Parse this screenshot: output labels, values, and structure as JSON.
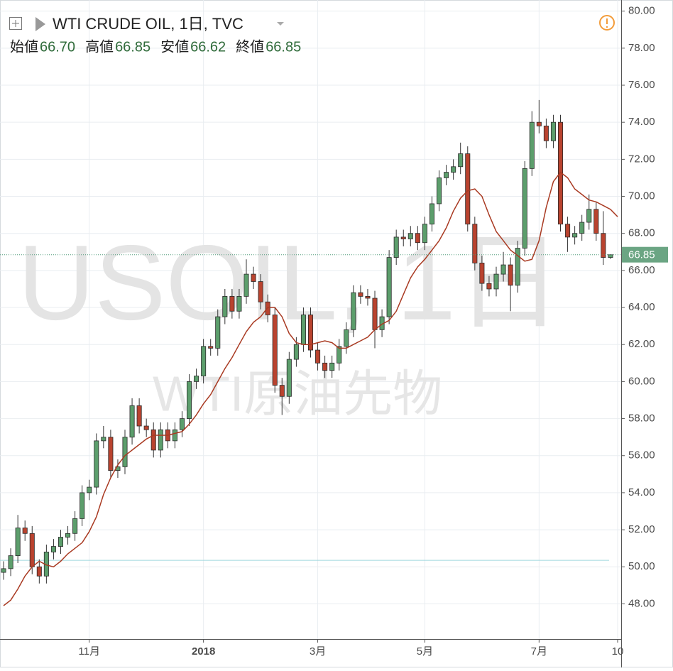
{
  "chart_data": {
    "type": "candlestick",
    "title": "WTI CRUDE OIL, 1日, TVC",
    "ohlc_legend": [
      {
        "label": "始値",
        "value": "66.70"
      },
      {
        "label": "高値",
        "value": "66.85"
      },
      {
        "label": "安値",
        "value": "66.62"
      },
      {
        "label": "終値",
        "value": "66.85"
      }
    ],
    "watermark": "USOIL, 1日",
    "watermark_sub": "WTI原油先物",
    "categories": [
      null,
      null,
      null,
      null,
      null,
      null,
      null,
      null,
      null,
      null,
      null,
      null,
      "11月",
      null,
      null,
      null,
      null,
      null,
      null,
      null,
      null,
      null,
      null,
      null,
      null,
      null,
      null,
      null,
      "2018",
      null,
      null,
      null,
      null,
      null,
      null,
      null,
      null,
      null,
      null,
      null,
      null,
      null,
      null,
      null,
      "3月",
      null,
      null,
      null,
      null,
      null,
      null,
      null,
      null,
      null,
      null,
      null,
      null,
      null,
      null,
      "5月",
      null,
      null,
      null,
      null,
      null,
      null,
      null,
      null,
      null,
      null,
      null,
      null,
      null,
      null,
      null,
      "7月",
      null,
      null,
      null,
      null,
      null,
      null,
      null,
      null,
      null,
      null,
      "10"
    ],
    "open": [
      49.7,
      49.9,
      50.6,
      52.1,
      51.8,
      50.0,
      49.5,
      50.8,
      51.1,
      51.6,
      51.8,
      52.6,
      54.0,
      54.3,
      56.8,
      57.0,
      55.2,
      55.4,
      57.0,
      58.7,
      57.6,
      57.4,
      56.3,
      57.4,
      56.8,
      57.4,
      58.0,
      60.0,
      60.3,
      61.9,
      61.8,
      63.5,
      64.6,
      63.8,
      64.6,
      65.8,
      65.4,
      64.3,
      63.6,
      59.8,
      59.2,
      61.2,
      62.0,
      63.6,
      61.7,
      61.0,
      60.6,
      61.0,
      61.9,
      62.8,
      64.8,
      64.6,
      64.5,
      62.8,
      63.5,
      66.7,
      67.8,
      67.7,
      68.0,
      67.5,
      68.5,
      69.6,
      71.0,
      71.3,
      71.6,
      72.3,
      68.5,
      66.4,
      65.3,
      65.0,
      65.8,
      66.3,
      65.2,
      67.2,
      71.5,
      74.0,
      73.8,
      73.0,
      74.0,
      68.5,
      67.8,
      68.0,
      68.6,
      69.3,
      68.0,
      66.7,
      null
    ],
    "high": [
      50.3,
      51.0,
      52.8,
      52.5,
      52.2,
      50.4,
      51.2,
      51.5,
      52.0,
      52.2,
      53.0,
      54.4,
      54.7,
      57.2,
      57.6,
      57.4,
      55.8,
      57.4,
      59.1,
      59.1,
      58.0,
      57.8,
      57.8,
      57.8,
      57.8,
      58.4,
      60.4,
      60.7,
      62.3,
      62.3,
      63.9,
      65.0,
      65.0,
      65.0,
      66.6,
      66.2,
      65.8,
      64.7,
      64.0,
      60.2,
      61.6,
      62.4,
      64.0,
      64.0,
      62.1,
      61.4,
      61.4,
      62.3,
      63.2,
      65.2,
      65.2,
      65.0,
      64.9,
      63.9,
      67.1,
      68.2,
      68.2,
      68.4,
      68.4,
      68.9,
      70.0,
      71.4,
      71.7,
      72.0,
      72.9,
      72.7,
      68.9,
      66.8,
      65.7,
      66.2,
      67.0,
      66.7,
      67.6,
      71.9,
      74.6,
      75.2,
      74.2,
      74.4,
      74.4,
      68.9,
      68.4,
      69.0,
      70.1,
      69.7,
      69.2,
      66.85,
      null
    ],
    "low": [
      49.3,
      49.5,
      50.2,
      51.4,
      49.6,
      49.1,
      49.1,
      50.4,
      50.7,
      51.2,
      51.4,
      52.2,
      53.6,
      53.9,
      56.4,
      54.8,
      54.8,
      55.0,
      56.6,
      57.2,
      57.0,
      55.9,
      55.9,
      56.4,
      56.4,
      57.0,
      57.6,
      59.6,
      59.9,
      61.4,
      61.4,
      63.1,
      63.4,
      63.4,
      64.2,
      65.0,
      63.9,
      63.2,
      59.4,
      58.2,
      58.8,
      60.8,
      61.6,
      61.3,
      60.6,
      60.2,
      60.2,
      60.6,
      61.5,
      62.4,
      64.2,
      64.1,
      61.8,
      62.4,
      63.1,
      66.3,
      67.3,
      67.3,
      67.1,
      67.1,
      68.1,
      69.2,
      70.6,
      70.9,
      71.2,
      68.1,
      66.0,
      64.9,
      64.6,
      64.6,
      65.4,
      63.8,
      64.8,
      66.8,
      71.1,
      73.4,
      72.6,
      72.6,
      68.1,
      67.0,
      67.4,
      67.6,
      68.2,
      67.6,
      66.3,
      66.62,
      null
    ],
    "close": [
      49.9,
      50.6,
      52.1,
      51.8,
      50.0,
      49.5,
      50.8,
      51.1,
      51.6,
      51.8,
      52.6,
      54.0,
      54.3,
      56.8,
      57.0,
      55.2,
      55.4,
      57.0,
      58.7,
      57.6,
      57.4,
      56.3,
      57.4,
      56.8,
      57.4,
      58.0,
      60.0,
      60.3,
      61.9,
      61.8,
      63.5,
      64.6,
      63.8,
      64.6,
      65.8,
      65.4,
      64.3,
      63.6,
      59.8,
      59.2,
      61.2,
      62.0,
      63.6,
      61.7,
      61.0,
      60.6,
      61.0,
      61.9,
      62.8,
      64.8,
      64.6,
      64.5,
      62.8,
      63.5,
      66.7,
      67.8,
      67.7,
      68.0,
      67.5,
      68.5,
      69.6,
      71.0,
      71.3,
      71.6,
      72.3,
      68.5,
      66.4,
      65.3,
      65.0,
      65.8,
      66.3,
      65.2,
      67.2,
      71.5,
      74.0,
      73.8,
      73.0,
      74.0,
      68.5,
      67.8,
      68.0,
      68.6,
      69.3,
      68.0,
      66.7,
      66.85,
      null
    ],
    "up_color": "#5c9e6c",
    "down_color": "#b9432f",
    "moving_average": {
      "color": "#a93a22",
      "values": [
        47.9,
        48.2,
        48.8,
        49.5,
        50.0,
        50.3,
        50.1,
        50.0,
        50.3,
        50.7,
        51.0,
        51.3,
        51.9,
        52.7,
        53.9,
        54.8,
        55.5,
        56.0,
        56.3,
        56.6,
        56.9,
        57.1,
        57.1,
        57.1,
        57.2,
        57.3,
        57.7,
        58.2,
        58.8,
        59.3,
        60.0,
        60.7,
        61.3,
        62.0,
        62.7,
        63.2,
        63.5,
        64.0,
        64.0,
        63.5,
        62.6,
        62.1,
        62.0,
        62.0,
        62.1,
        62.2,
        62.1,
        61.8,
        61.8,
        62.0,
        62.2,
        62.4,
        62.8,
        63.1,
        63.3,
        63.8,
        64.7,
        65.6,
        66.2,
        66.6,
        67.1,
        67.6,
        68.3,
        69.2,
        69.9,
        70.3,
        70.4,
        70.0,
        69.0,
        68.1,
        67.6,
        67.1,
        66.8,
        66.5,
        66.6,
        67.6,
        69.4,
        70.8,
        71.3,
        71.0,
        70.4,
        70.1,
        69.8,
        69.7,
        69.5,
        69.3,
        68.9
      ]
    },
    "current_price": 66.85,
    "reference_line": {
      "value": 50.35,
      "color": "#9fd6de"
    },
    "ylim": [
      46.1,
      80.6
    ],
    "yticks": [
      {
        "value": 48,
        "label": "48.00"
      },
      {
        "value": 50,
        "label": "50.00"
      },
      {
        "value": 52,
        "label": "52.00"
      },
      {
        "value": 54,
        "label": "54.00"
      },
      {
        "value": 56,
        "label": "56.00"
      },
      {
        "value": 58,
        "label": "58.00"
      },
      {
        "value": 60,
        "label": "60.00"
      },
      {
        "value": 62,
        "label": "62.00"
      },
      {
        "value": 64,
        "label": "64.00"
      },
      {
        "value": 66,
        "label": "66.00"
      },
      {
        "value": 68,
        "label": "68.00"
      },
      {
        "value": 70,
        "label": "70.00"
      },
      {
        "value": 72,
        "label": "72.00"
      },
      {
        "value": 74,
        "label": "74.00"
      },
      {
        "value": 76,
        "label": "76.00"
      },
      {
        "value": 78,
        "label": "78.00"
      },
      {
        "value": 80,
        "label": "80.00"
      }
    ],
    "grid": true
  }
}
